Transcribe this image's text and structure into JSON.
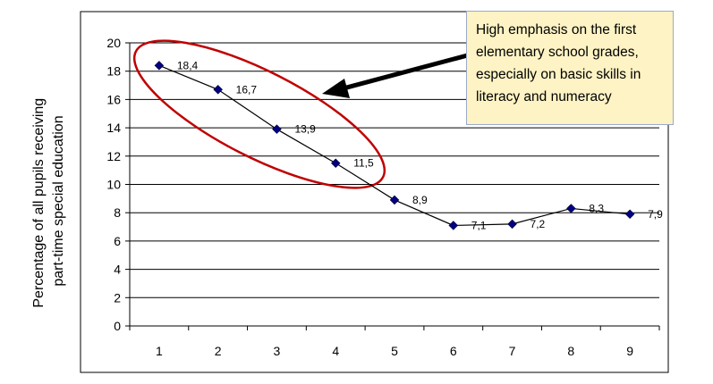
{
  "chart_data": {
    "type": "line",
    "ylabel_lines": [
      "Percentage of all pupils receiving",
      "part-time special education"
    ],
    "xlabel": "",
    "categories": [
      "1",
      "2",
      "3",
      "4",
      "5",
      "6",
      "7",
      "8",
      "9"
    ],
    "values": [
      18.4,
      16.7,
      13.9,
      11.5,
      8.9,
      7.1,
      7.2,
      8.3,
      7.9
    ],
    "data_labels": [
      "18,4",
      "16,7",
      "13,9",
      "11,5",
      "8,9",
      "7,1",
      "7,2",
      "8,3",
      "7,9"
    ],
    "ylim": [
      0,
      20
    ],
    "yticks": [
      "0",
      "2",
      "4",
      "6",
      "8",
      "10",
      "12",
      "14",
      "16",
      "18",
      "20"
    ],
    "grid": "horizontal",
    "line_color": "#000000",
    "marker_color": "#000080",
    "annotation": {
      "lines": [
        "High emphasis on the first",
        "elementary school grades,",
        "especially on basic skills in",
        "literacy and numeracy"
      ],
      "box_color": "#fdf3c4",
      "ellipse_color": "#c00000",
      "highlighted_categories": [
        "1",
        "2",
        "3",
        "4"
      ]
    }
  }
}
